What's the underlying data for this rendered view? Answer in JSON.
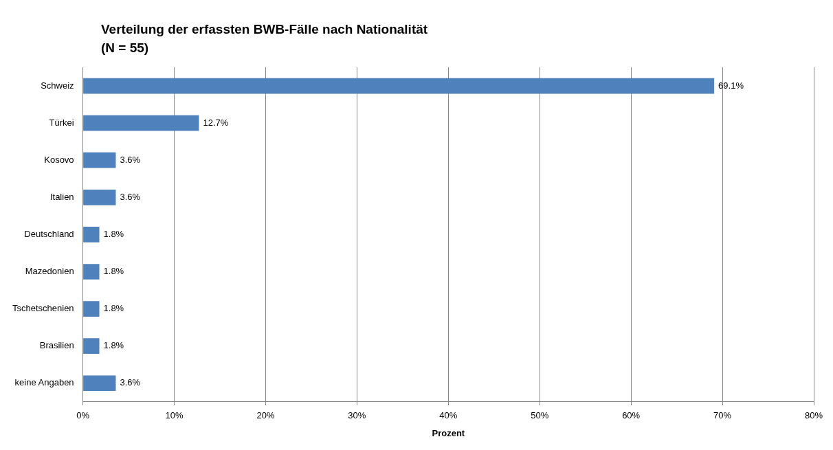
{
  "chart_data": {
    "type": "bar",
    "orientation": "horizontal",
    "title": "Verteilung der erfassten BWB-Fälle nach Nationalität\n(N = 55)",
    "xlabel": "Prozent",
    "categories": [
      "Schweiz",
      "Türkei",
      "Kosovo",
      "Italien",
      "Deutschland",
      "Mazedonien",
      "Tschetschenien",
      "Brasilien",
      "keine Angaben"
    ],
    "values": [
      69.1,
      12.7,
      3.6,
      3.6,
      1.8,
      1.8,
      1.8,
      1.8,
      3.6
    ],
    "value_labels": [
      "69.1%",
      "12.7%",
      "3.6%",
      "3.6%",
      "1.8%",
      "1.8%",
      "1.8%",
      "1.8%",
      "3.6%"
    ],
    "color": "#4f81bd",
    "xlim": [
      0,
      80
    ],
    "xticks": [
      {
        "value": 0,
        "label": "0%"
      },
      {
        "value": 10,
        "label": "10%"
      },
      {
        "value": 20,
        "label": "20%"
      },
      {
        "value": 30,
        "label": "30%"
      },
      {
        "value": 40,
        "label": "40%"
      },
      {
        "value": 50,
        "label": "50%"
      },
      {
        "value": 60,
        "label": "60%"
      },
      {
        "value": 70,
        "label": "70%"
      },
      {
        "value": 80,
        "label": "80%"
      }
    ],
    "grid": "x",
    "legend": false
  }
}
